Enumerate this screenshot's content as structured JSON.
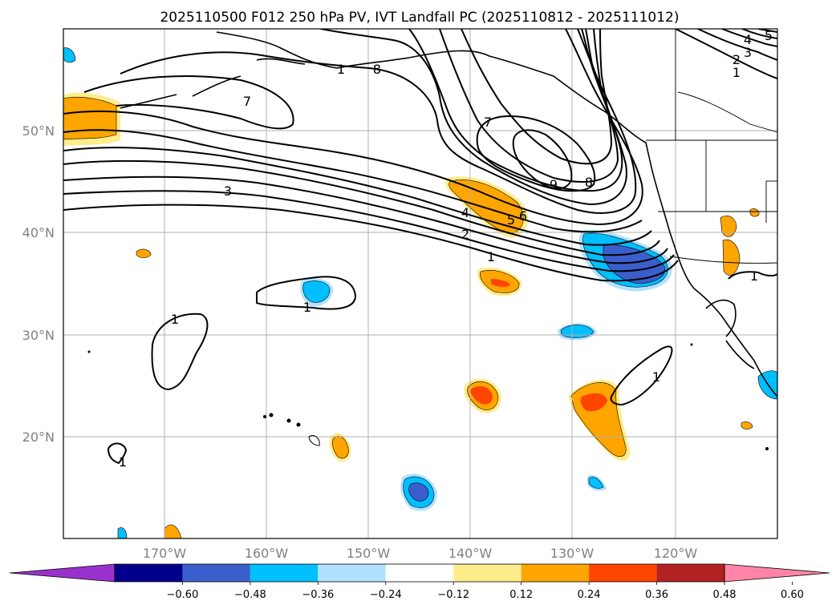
{
  "title": "2025110500 F012 250 hPa PV, IVT Landfall PC (2025110812 - 2025111012)",
  "lat_labels": [
    "50°N",
    "40°N",
    "30°N",
    "20°N"
  ],
  "lon_labels": [
    "170°W",
    "160°W",
    "150°W",
    "140°W",
    "130°W",
    "120°W"
  ],
  "colorbar": {
    "tick_labels": [
      "−0.60",
      "−0.48",
      "−0.36",
      "−0.24",
      "−0.12",
      "0.12",
      "0.24",
      "0.36",
      "0.48",
      "0.60"
    ],
    "colors": [
      "#9932cc",
      "#00008b",
      "#3a5fcd",
      "#00bfff",
      "#b0e2ff",
      "#ffffff",
      "#ffec8b",
      "#ffa500",
      "#ff4500",
      "#b22222",
      "#ff85a8"
    ]
  },
  "contour_labels": [
    "7",
    "8",
    "3",
    "4",
    "5",
    "6",
    "2",
    "1",
    "7",
    "9",
    "8",
    "1",
    "1",
    "1",
    "1",
    "2",
    "3",
    "4",
    "5",
    "1",
    "1",
    "1"
  ],
  "colors": {
    "grid": "#b0b0b0",
    "land": "#000000"
  }
}
